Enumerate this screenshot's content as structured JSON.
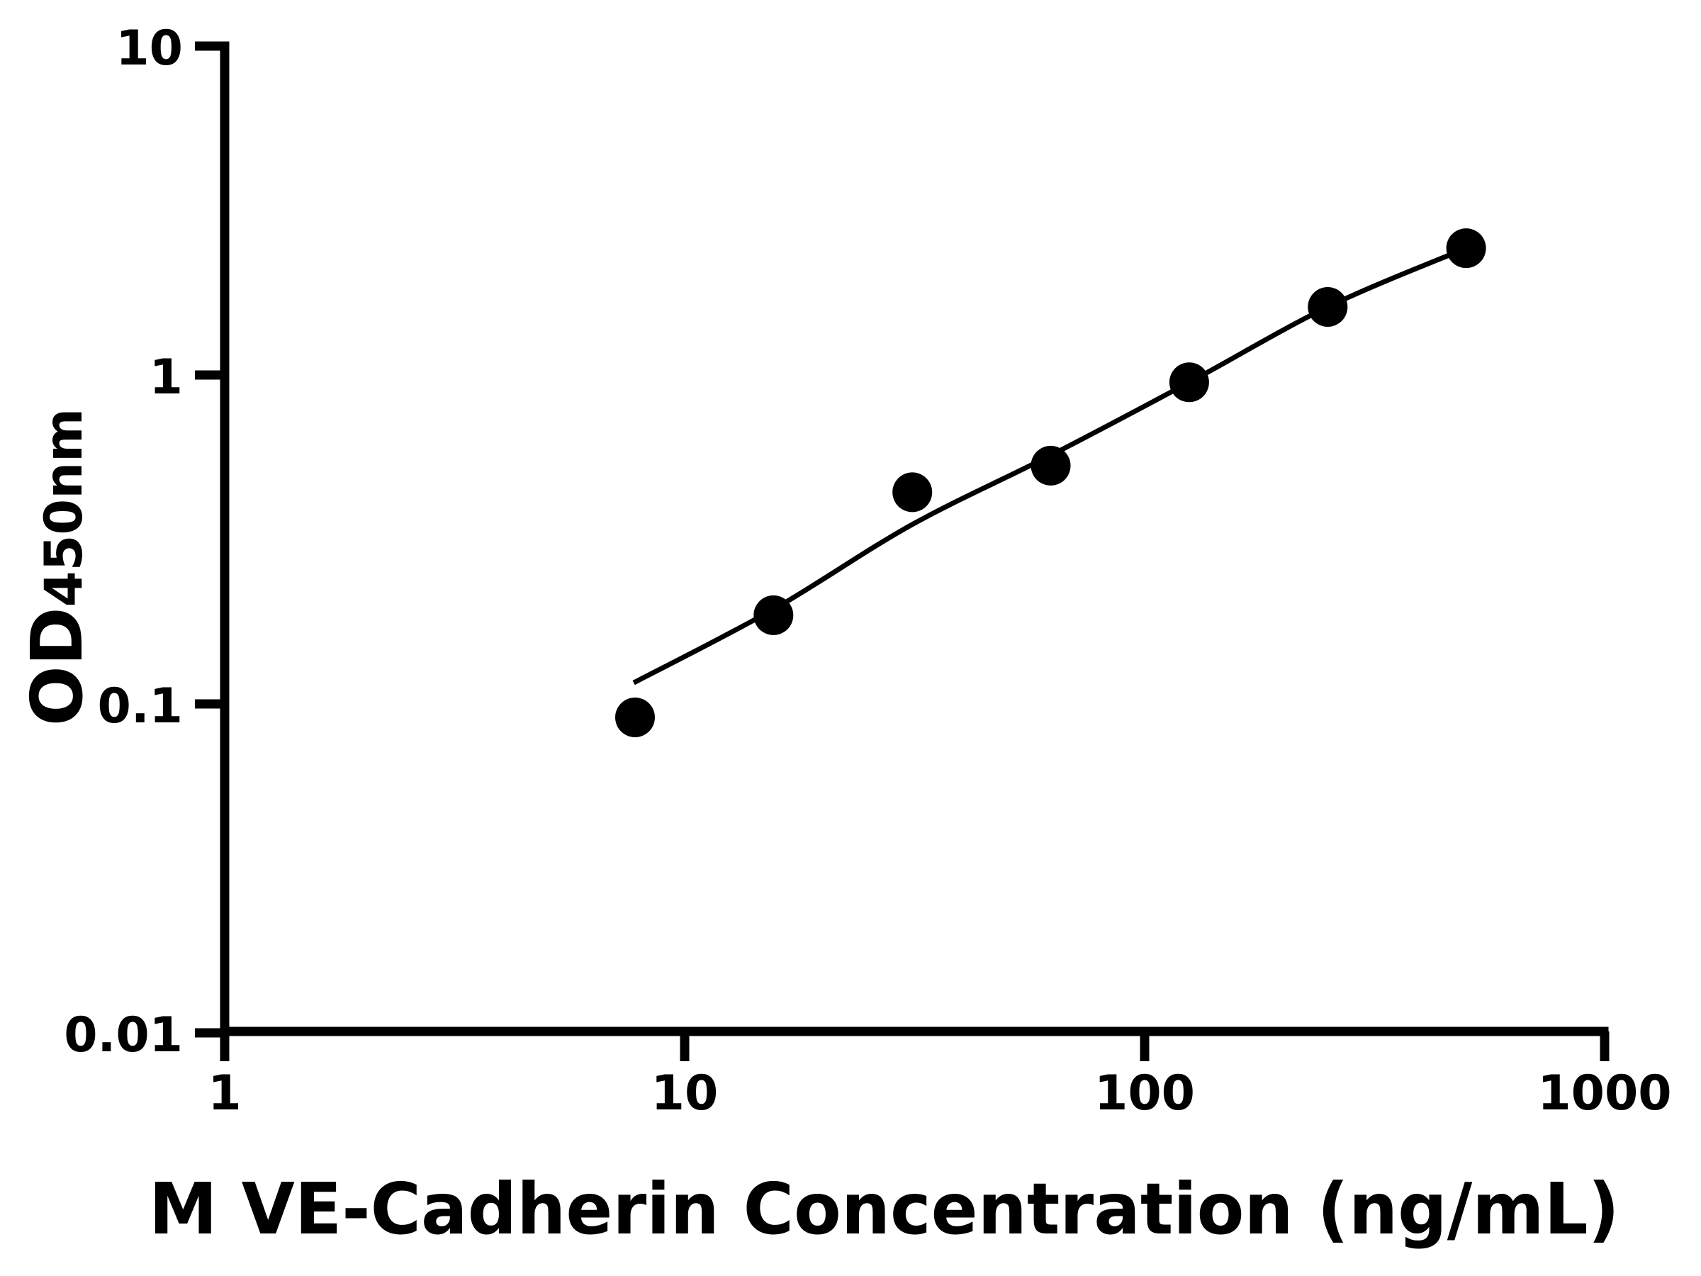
{
  "figure": {
    "background": "#ffffff",
    "ink_color": "#000000"
  },
  "chart_data": {
    "type": "scatter",
    "title": "",
    "xlabel": "M VE-Cadherin Concentration (ng/mL)",
    "ylabel": "OD",
    "ylabel_subscript": "450nm",
    "x_scale": "log",
    "y_scale": "log",
    "xlim": [
      1,
      1000
    ],
    "ylim": [
      0.01,
      10
    ],
    "grid": false,
    "legend": null,
    "x_ticks": [
      {
        "value": 1,
        "label": "1"
      },
      {
        "value": 10,
        "label": "10"
      },
      {
        "value": 100,
        "label": "100"
      },
      {
        "value": 1000,
        "label": "1000"
      }
    ],
    "y_ticks": [
      {
        "value": 10,
        "label": "10"
      },
      {
        "value": 1,
        "label": "1"
      },
      {
        "value": 0.1,
        "label": "0.1"
      },
      {
        "value": 0.01,
        "label": "0.01"
      }
    ],
    "series": [
      {
        "name": "standard-points",
        "type": "scatter",
        "marker": "circle",
        "color": "#000000",
        "points": [
          [
            7.8,
            0.091
          ],
          [
            15.6,
            0.186
          ],
          [
            31.25,
            0.44
          ],
          [
            62.5,
            0.53
          ],
          [
            125,
            0.95
          ],
          [
            250,
            1.61
          ],
          [
            500,
            2.43
          ]
        ]
      },
      {
        "name": "fit-line",
        "type": "line",
        "color": "#000000",
        "points": [
          [
            7.75,
            0.116
          ],
          [
            15.6,
            0.194
          ],
          [
            31.1,
            0.35
          ],
          [
            62.5,
            0.57
          ],
          [
            125,
            0.95
          ],
          [
            250,
            1.61
          ],
          [
            500,
            2.43
          ]
        ]
      }
    ]
  }
}
